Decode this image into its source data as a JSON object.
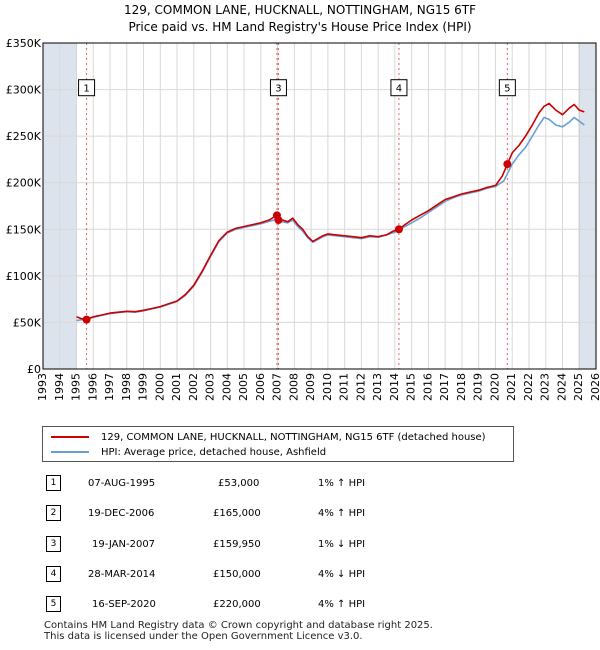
{
  "title_line1": "129, COMMON LANE, HUCKNALL, NOTTINGHAM, NG15 6TF",
  "title_line2": "Price paid vs. HM Land Registry's House Price Index (HPI)",
  "colors": {
    "price": "#cc0000",
    "hpi": "#6a9fd4",
    "shade": "#dde3ec",
    "grid": "#d8d8d8",
    "marker_line": "#e06060"
  },
  "chart_data": {
    "type": "line",
    "title": "Price paid vs. HM Land Registry's House Price Index (HPI)",
    "xlim": [
      1993,
      2026
    ],
    "ylim": [
      0,
      350000
    ],
    "x_ticks": [
      1993,
      1994,
      1995,
      1996,
      1997,
      1998,
      1999,
      2000,
      2001,
      2002,
      2003,
      2004,
      2005,
      2006,
      2007,
      2008,
      2009,
      2010,
      2011,
      2012,
      2013,
      2014,
      2015,
      2016,
      2017,
      2018,
      2019,
      2020,
      2021,
      2022,
      2023,
      2024,
      2025,
      2026
    ],
    "y_ticks": [
      {
        "value": 0,
        "label": "£0"
      },
      {
        "value": 50000,
        "label": "£50K"
      },
      {
        "value": 100000,
        "label": "£100K"
      },
      {
        "value": 150000,
        "label": "£150K"
      },
      {
        "value": 200000,
        "label": "£200K"
      },
      {
        "value": 250000,
        "label": "£250K"
      },
      {
        "value": 300000,
        "label": "£300K"
      },
      {
        "value": 350000,
        "label": "£350K"
      }
    ],
    "shaded_ranges": [
      [
        1993,
        1995.0
      ],
      [
        2025.0,
        2026
      ]
    ],
    "series": [
      {
        "name": "129, COMMON LANE, HUCKNALL, NOTTINGHAM, NG15 6TF (detached house)",
        "x": [
          1995.0,
          1995.3,
          1995.6,
          1996.0,
          1996.5,
          1997.0,
          1997.5,
          1998.0,
          1998.5,
          1999.0,
          1999.5,
          2000.0,
          2000.5,
          2001.0,
          2001.5,
          2002.0,
          2002.5,
          2003.0,
          2003.5,
          2004.0,
          2004.5,
          2005.0,
          2005.5,
          2006.0,
          2006.5,
          2006.96,
          2007.05,
          2007.3,
          2007.6,
          2007.9,
          2008.2,
          2008.5,
          2008.8,
          2009.1,
          2009.4,
          2009.7,
          2010.0,
          2010.5,
          2011.0,
          2011.5,
          2012.0,
          2012.5,
          2013.0,
          2013.5,
          2013.9,
          2014.24,
          2014.6,
          2015.0,
          2015.5,
          2016.0,
          2016.5,
          2017.0,
          2017.5,
          2018.0,
          2018.5,
          2019.0,
          2019.5,
          2020.0,
          2020.4,
          2020.71,
          2021.0,
          2021.4,
          2021.8,
          2022.2,
          2022.6,
          2022.9,
          2023.2,
          2023.6,
          2024.0,
          2024.4,
          2024.7,
          2025.0,
          2025.3
        ],
        "y": [
          56000,
          54000,
          53000,
          56000,
          58000,
          60000,
          61000,
          62000,
          61500,
          63000,
          65000,
          67000,
          70000,
          73000,
          80000,
          90000,
          105000,
          122000,
          138000,
          147000,
          151000,
          153000,
          155000,
          157000,
          160000,
          165000,
          159950,
          160000,
          158000,
          162000,
          155000,
          150000,
          142000,
          137000,
          140000,
          143000,
          145000,
          144000,
          143000,
          142000,
          141000,
          143000,
          142000,
          144000,
          148000,
          150000,
          155000,
          160000,
          165000,
          170000,
          176000,
          182000,
          185000,
          188000,
          190000,
          192000,
          195000,
          197000,
          207000,
          220000,
          232000,
          240000,
          250000,
          262000,
          275000,
          282000,
          285000,
          278000,
          273000,
          280000,
          284000,
          278000,
          276000
        ]
      },
      {
        "name": "HPI: Average price, detached house, Ashfield",
        "x": [
          1995.0,
          1995.5,
          1996.0,
          1996.5,
          1997.0,
          1997.5,
          1998.0,
          1998.5,
          1999.0,
          1999.5,
          2000.0,
          2000.5,
          2001.0,
          2001.5,
          2002.0,
          2002.5,
          2003.0,
          2003.5,
          2004.0,
          2004.5,
          2005.0,
          2005.5,
          2006.0,
          2006.5,
          2007.0,
          2007.3,
          2007.6,
          2007.9,
          2008.2,
          2008.5,
          2008.8,
          2009.1,
          2009.4,
          2009.7,
          2010.0,
          2010.5,
          2011.0,
          2011.5,
          2012.0,
          2012.5,
          2013.0,
          2013.5,
          2014.0,
          2014.5,
          2015.0,
          2015.5,
          2016.0,
          2016.5,
          2017.0,
          2017.5,
          2018.0,
          2018.5,
          2019.0,
          2019.5,
          2020.0,
          2020.5,
          2021.0,
          2021.4,
          2021.8,
          2022.2,
          2022.6,
          2022.9,
          2023.2,
          2023.6,
          2024.0,
          2024.4,
          2024.7,
          2025.0,
          2025.3
        ],
        "y": [
          52000,
          53500,
          55500,
          57500,
          59500,
          60500,
          61500,
          61000,
          62500,
          64500,
          66500,
          69500,
          72500,
          79000,
          89000,
          104000,
          121000,
          137000,
          146000,
          150000,
          152000,
          154000,
          156000,
          158500,
          161000,
          158000,
          157000,
          160000,
          153000,
          148000,
          141000,
          136000,
          139000,
          142000,
          144000,
          143000,
          142000,
          141000,
          140000,
          142000,
          141500,
          144000,
          147000,
          152000,
          157000,
          162000,
          168000,
          174000,
          180000,
          184000,
          187000,
          189000,
          191000,
          194000,
          196000,
          202000,
          220000,
          230000,
          238000,
          250000,
          262000,
          270000,
          268000,
          262000,
          260000,
          265000,
          270000,
          266000,
          262000
        ]
      }
    ],
    "sales": [
      {
        "label": "1",
        "x": 1995.6,
        "y": 53000
      },
      {
        "label": "2",
        "x": 2006.96,
        "y": 165000
      },
      {
        "label": "3",
        "x": 2007.05,
        "y": 159950
      },
      {
        "label": "4",
        "x": 2014.24,
        "y": 150000
      },
      {
        "label": "5",
        "x": 2020.71,
        "y": 220000
      }
    ],
    "chart_boxes": [
      {
        "label": "1",
        "x": 1995.6
      },
      {
        "label": "3",
        "x": 2007.05
      },
      {
        "label": "4",
        "x": 2014.24
      },
      {
        "label": "5",
        "x": 2020.71
      }
    ],
    "box_y": 302000
  },
  "legend": {
    "price_label": "129, COMMON LANE, HUCKNALL, NOTTINGHAM, NG15 6TF (detached house)",
    "hpi_label": "HPI: Average price, detached house, Ashfield"
  },
  "transactions": [
    {
      "num": "1",
      "date": "07-AUG-1995",
      "price": "£53,000",
      "hpi": "1% ↑ HPI"
    },
    {
      "num": "2",
      "date": "19-DEC-2006",
      "price": "£165,000",
      "hpi": "4% ↑ HPI"
    },
    {
      "num": "3",
      "date": "19-JAN-2007",
      "price": "£159,950",
      "hpi": "1% ↓ HPI"
    },
    {
      "num": "4",
      "date": "28-MAR-2014",
      "price": "£150,000",
      "hpi": "4% ↓ HPI"
    },
    {
      "num": "5",
      "date": "16-SEP-2020",
      "price": "£220,000",
      "hpi": "4% ↑ HPI"
    }
  ],
  "footer_line1": "Contains HM Land Registry data © Crown copyright and database right 2025.",
  "footer_line2": "This data is licensed under the Open Government Licence v3.0."
}
